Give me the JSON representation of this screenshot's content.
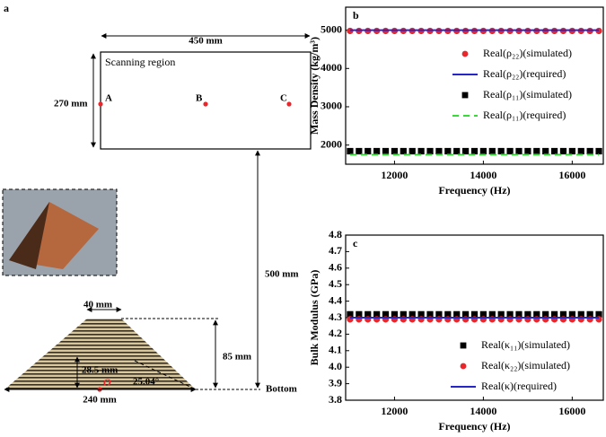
{
  "diagram": {
    "panel_label": "a",
    "width_label": "450 mm",
    "region_label": "Scanning region",
    "height_label": "270 mm",
    "points": [
      "A",
      "B",
      "C"
    ],
    "distance_label": "500 mm",
    "top_label": "40 mm",
    "prism_height_label": "85 mm",
    "inner_label": "28.5 mm",
    "origin_label": "O",
    "angle_label": "25.04°",
    "base_label": "240 mm",
    "bottom_label": "Bottom"
  },
  "chart_data": [
    {
      "type": "scatter",
      "panel_label": "b",
      "xlabel": "Frequency (Hz)",
      "ylabel": "Mass Density (kg/m³)",
      "xlim": [
        10900,
        16700
      ],
      "xticks": [
        12000,
        14000,
        16000
      ],
      "ylim": [
        1500,
        5600
      ],
      "yticks": [
        2000,
        3000,
        4000,
        5000
      ],
      "x": [
        11000,
        11200,
        11400,
        11600,
        11800,
        12000,
        12200,
        12400,
        12600,
        12800,
        13000,
        13200,
        13400,
        13600,
        13800,
        14000,
        14200,
        14400,
        14600,
        14800,
        15000,
        15200,
        15400,
        15600,
        15800,
        16000,
        16200,
        16400,
        16600
      ],
      "series": [
        {
          "name": "Real(ρ₂₂)(simulated)",
          "color": "#e8262b",
          "style": "circle",
          "values": [
            4980,
            4980,
            4980,
            4980,
            4980,
            4980,
            4980,
            4980,
            4980,
            4980,
            4980,
            4980,
            4980,
            4980,
            4980,
            4980,
            4980,
            4980,
            4980,
            4980,
            4980,
            4980,
            4980,
            4980,
            4980,
            4980,
            4980,
            4980,
            4980
          ]
        },
        {
          "name": "Real(ρ₂₂)(required)",
          "color": "#2626c8",
          "style": "line",
          "values": [
            5000,
            5000,
            5000,
            5000,
            5000,
            5000,
            5000,
            5000,
            5000,
            5000,
            5000,
            5000,
            5000,
            5000,
            5000,
            5000,
            5000,
            5000,
            5000,
            5000,
            5000,
            5000,
            5000,
            5000,
            5000,
            5000,
            5000,
            5000,
            5000
          ]
        },
        {
          "name": "Real(ρ₁₁)(simulated)",
          "color": "#000000",
          "style": "square",
          "values": [
            1840,
            1840,
            1840,
            1840,
            1840,
            1840,
            1840,
            1840,
            1840,
            1840,
            1840,
            1840,
            1840,
            1840,
            1840,
            1840,
            1840,
            1840,
            1840,
            1840,
            1840,
            1840,
            1840,
            1840,
            1840,
            1840,
            1840,
            1840,
            1840
          ]
        },
        {
          "name": "Real(ρ₁₁)(required)",
          "color": "#3ad83a",
          "style": "dashed",
          "values": [
            1750,
            1750,
            1750,
            1750,
            1750,
            1750,
            1750,
            1750,
            1750,
            1750,
            1750,
            1750,
            1750,
            1750,
            1750,
            1750,
            1750,
            1750,
            1750,
            1750,
            1750,
            1750,
            1750,
            1750,
            1750,
            1750,
            1750,
            1750,
            1750
          ]
        }
      ]
    },
    {
      "type": "scatter",
      "panel_label": "c",
      "xlabel": "Frequency (Hz)",
      "ylabel": "Bulk Modulus (GPa)",
      "xlim": [
        10900,
        16700
      ],
      "xticks": [
        12000,
        14000,
        16000
      ],
      "ylim": [
        3.8,
        4.8
      ],
      "yticks": [
        3.8,
        3.9,
        {
          "value": 4,
          "label": "4.0"
        },
        4.1,
        4.2,
        4.3,
        4.4,
        4.5,
        4.6,
        4.7,
        4.8
      ],
      "x": [
        11000,
        11200,
        11400,
        11600,
        11800,
        12000,
        12200,
        12400,
        12600,
        12800,
        13000,
        13200,
        13400,
        13600,
        13800,
        14000,
        14200,
        14400,
        14600,
        14800,
        15000,
        15200,
        15400,
        15600,
        15800,
        16000,
        16200,
        16400,
        16600
      ],
      "series": [
        {
          "name": "Real(κ₁₁)(simulated)",
          "color": "#000000",
          "style": "square",
          "values": [
            4.32,
            4.32,
            4.32,
            4.32,
            4.32,
            4.32,
            4.32,
            4.32,
            4.32,
            4.32,
            4.32,
            4.32,
            4.32,
            4.32,
            4.32,
            4.32,
            4.32,
            4.32,
            4.32,
            4.32,
            4.32,
            4.32,
            4.32,
            4.32,
            4.32,
            4.32,
            4.32,
            4.32,
            4.32
          ]
        },
        {
          "name": "Real(κ₂₂)(simulated)",
          "color": "#e8262b",
          "style": "circle",
          "values": [
            4.29,
            4.29,
            4.29,
            4.29,
            4.29,
            4.29,
            4.29,
            4.29,
            4.29,
            4.29,
            4.29,
            4.29,
            4.29,
            4.29,
            4.29,
            4.29,
            4.29,
            4.29,
            4.29,
            4.29,
            4.29,
            4.29,
            4.29,
            4.29,
            4.29,
            4.29,
            4.29,
            4.29,
            4.29
          ]
        },
        {
          "name": "Real(κ)(required)",
          "color": "#2626c8",
          "style": "line",
          "values": [
            4.3,
            4.3,
            4.3,
            4.3,
            4.3,
            4.3,
            4.3,
            4.3,
            4.3,
            4.3,
            4.3,
            4.3,
            4.3,
            4.3,
            4.3,
            4.3,
            4.3,
            4.3,
            4.3,
            4.3,
            4.3,
            4.3,
            4.3,
            4.3,
            4.3,
            4.3,
            4.3,
            4.3,
            4.3
          ]
        }
      ]
    }
  ]
}
